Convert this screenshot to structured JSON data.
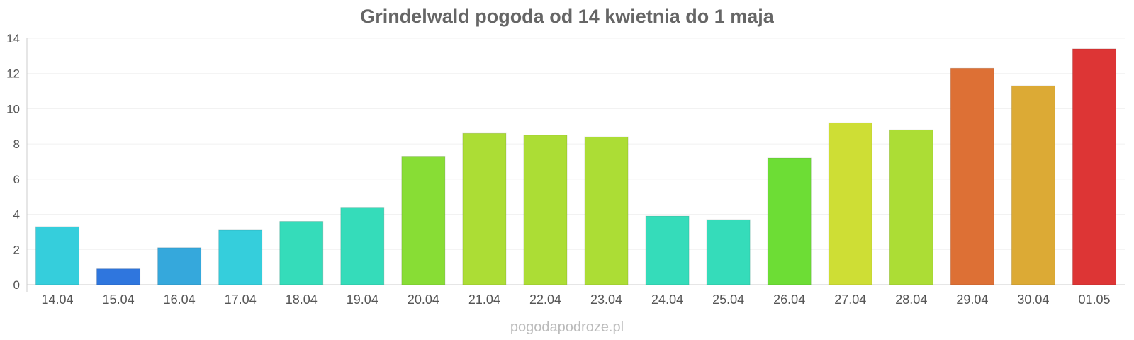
{
  "chart_data": {
    "type": "bar",
    "title": "Grindelwald pogoda od 14 kwietnia do 1 maja",
    "xlabel": "",
    "ylabel": "",
    "categories": [
      "14.04",
      "15.04",
      "16.04",
      "17.04",
      "18.04",
      "19.04",
      "20.04",
      "21.04",
      "22.04",
      "23.04",
      "24.04",
      "25.04",
      "26.04",
      "27.04",
      "28.04",
      "29.04",
      "30.04",
      "01.05"
    ],
    "values": [
      3.3,
      0.9,
      2.1,
      3.1,
      3.6,
      4.4,
      7.3,
      8.6,
      8.5,
      8.4,
      3.9,
      3.7,
      7.2,
      9.2,
      8.8,
      12.3,
      11.3,
      13.4
    ],
    "bar_colors": [
      "#35cedc",
      "#2f76de",
      "#35a8dc",
      "#35cedc",
      "#35dcba",
      "#35dcba",
      "#88dd35",
      "#acdd35",
      "#acdd35",
      "#acdd35",
      "#35dcba",
      "#35dcba",
      "#6ddd35",
      "#cede35",
      "#acdd35",
      "#dd7035",
      "#dcaa35",
      "#dd3535"
    ],
    "ylim": [
      0,
      14
    ],
    "yticks": [
      "0",
      "2",
      "4",
      "6",
      "8",
      "10",
      "12",
      "14"
    ],
    "grid": true,
    "legend": "none"
  },
  "source": "pogodapodroze.pl"
}
